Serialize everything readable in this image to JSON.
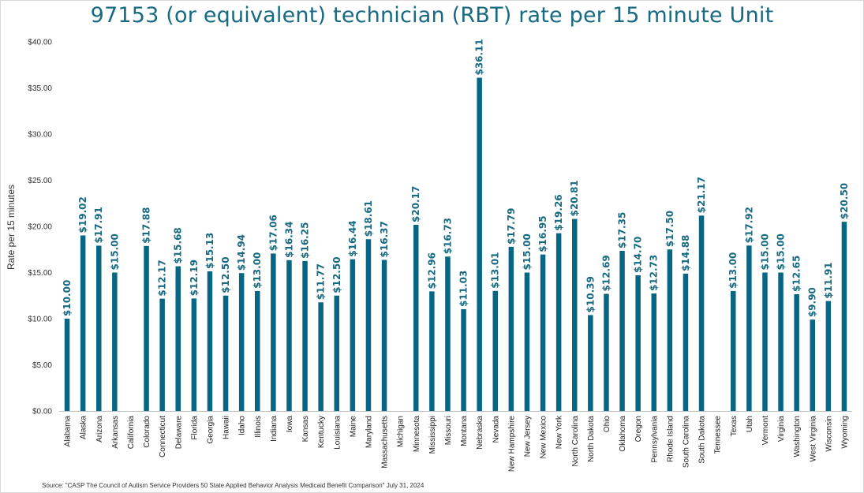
{
  "chart_data": {
    "type": "bar",
    "title": "97153 (or equivalent) technician (RBT) rate per 15 minute Unit",
    "xlabel": "",
    "ylabel": "Rate per 15 minutes",
    "source": "Source: \"CASP The Council of Autism Service Providers 50 State Applied Behavior Analysis Medicaid Benefit Comparison\" July 31, 2024",
    "ylim": [
      0,
      40
    ],
    "yticks": [
      0,
      5,
      10,
      15,
      20,
      25,
      30,
      35,
      40
    ],
    "ytick_labels": [
      "$0.00",
      "$5.00",
      "$10.00",
      "$15.00",
      "$20.00",
      "$25.00",
      "$30.00",
      "$35.00",
      "$40.00"
    ],
    "grid": false,
    "bar_color": "#076683",
    "label_color": "#186a82",
    "categories": [
      "Alabama",
      "Alaska",
      "Arizona",
      "Arkansas",
      "California",
      "Colorado",
      "Connecticut",
      "Delaware",
      "Florida",
      "Georgia",
      "Hawaii",
      "Idaho",
      "Illinois",
      "Indiana",
      "Iowa",
      "Kansas",
      "Kentucky",
      "Louisiana",
      "Maine",
      "Maryland",
      "Massachusetts",
      "Michigan",
      "Minnesota",
      "Mississippi",
      "Missouri",
      "Montana",
      "Nebraska",
      "Nevada",
      "New Hampshire",
      "New Jersey",
      "New Mexico",
      "New York",
      "North Carolina",
      "North Dakota",
      "Ohio",
      "Oklahoma",
      "Oregon",
      "Pennsylvania",
      "Rhode Island",
      "South Carolina",
      "South Dakota",
      "Tennessee",
      "Texas",
      "Utah",
      "Vermont",
      "Virginia",
      "Washington",
      "West Virginia",
      "Wisconsin",
      "Wyoming"
    ],
    "values": [
      10.0,
      19.02,
      17.91,
      15.0,
      null,
      17.88,
      12.17,
      15.68,
      12.19,
      15.13,
      12.5,
      14.94,
      13.0,
      17.06,
      16.34,
      16.25,
      11.77,
      12.5,
      16.44,
      18.61,
      16.37,
      null,
      20.17,
      12.96,
      16.73,
      11.03,
      36.11,
      13.01,
      17.79,
      15.0,
      16.95,
      19.26,
      20.81,
      10.39,
      12.69,
      17.35,
      14.7,
      12.73,
      17.5,
      14.88,
      21.17,
      null,
      13.0,
      17.92,
      15.0,
      15.0,
      12.65,
      9.9,
      11.91,
      20.5
    ],
    "data_labels": [
      "$10.00",
      "$19.02",
      "$17.91",
      "$15.00",
      "",
      "$17.88",
      "$12.17",
      "$15.68",
      "$12.19",
      "$15.13",
      "$12.50",
      "$14.94",
      "$13.00",
      "$17.06",
      "$16.34",
      "$16.25",
      "$11.77",
      "$12.50",
      "$16.44",
      "$18.61",
      "$16.37",
      "",
      "$20.17",
      "$12.96",
      "$16.73",
      "$11.03",
      "$36.11",
      "$13.01",
      "$17.79",
      "$15.00",
      "$16.95",
      "$19.26",
      "$20.81",
      "$10.39",
      "$12.69",
      "$17.35",
      "$14.70",
      "$12.73",
      "$17.50",
      "$14.88",
      "$21.17",
      "",
      "$13.00",
      "$17.92",
      "$15.00",
      "$15.00",
      "$12.65",
      "$9.90",
      "$11.91",
      "$20.50"
    ]
  }
}
